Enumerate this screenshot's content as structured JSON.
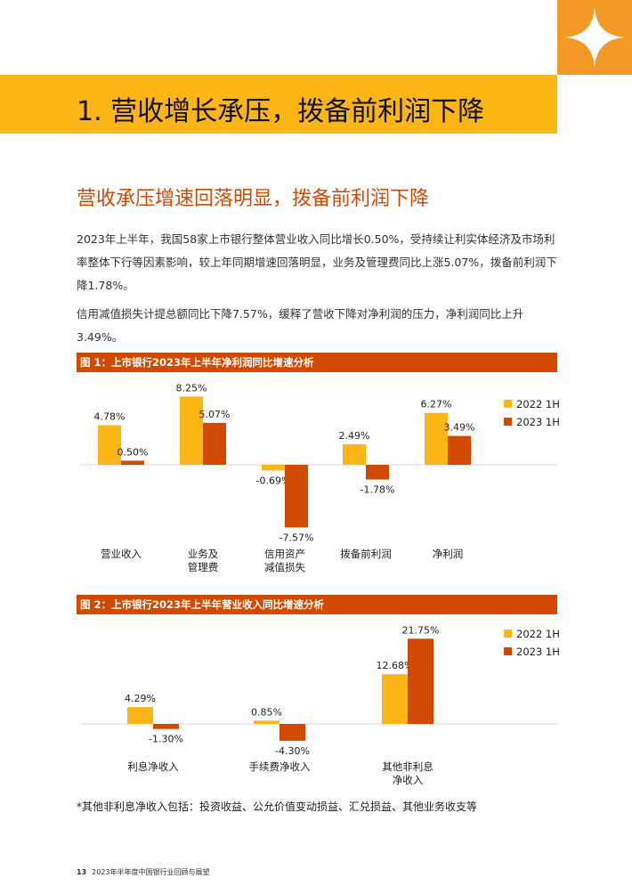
{
  "section_title": "1. 营收增长承压，拨备前利润下降",
  "subtitle": "营收承压增速回落明显，拨备前利润下降",
  "paragraphs": [
    "2023年上半年，我国58家上市银行整体营业收入同比增长0.50%，受持续让利实体经济及市场利率整体下行等因素影响，较上年同期增速回落明显，业务及管理费同比上涨5.07%，拨备前利润下降1.78%。",
    "信用减值损失计提总额同比下降7.57%，缓释了营收下降对净利润的压力，净利润同比上升3.49%。"
  ],
  "colors": {
    "accent_orange": "#d04a02",
    "accent_yellow": "#fbb515",
    "corner_orange": "#f29a25"
  },
  "icons": {
    "corner": "sparkle-star-icon"
  },
  "chart_data": [
    {
      "type": "bar",
      "title": "图 1：上市银行2023年上半年净利润同比增速分析",
      "categories": [
        "营业收入",
        "业务及\n管理费",
        "信用资产\n减值损失",
        "拨备前利润",
        "净利润"
      ],
      "series": [
        {
          "name": "2022 1H",
          "color": "#fbb515",
          "values": [
            4.78,
            8.25,
            -0.69,
            2.49,
            6.27
          ]
        },
        {
          "name": "2023 1H",
          "color": "#d04a02",
          "values": [
            0.5,
            5.07,
            -7.57,
            -1.78,
            3.49
          ]
        }
      ],
      "labels": [
        [
          "4.78%",
          "8.25%",
          "-0.69%",
          "2.49%",
          "6.27%"
        ],
        [
          "0.50%",
          "5.07%",
          "-7.57%",
          "-1.78%",
          "3.49%"
        ]
      ],
      "legend": "top-right",
      "grid": false
    },
    {
      "type": "bar",
      "title": "图 2：上市银行2023年上半年营业收入同比增速分析",
      "categories": [
        "利息净收入",
        "手续费净收入",
        "其他非利息\n净收入"
      ],
      "series": [
        {
          "name": "2022 1H",
          "color": "#fbb515",
          "values": [
            4.29,
            0.85,
            12.68
          ]
        },
        {
          "name": "2023 1H",
          "color": "#d04a02",
          "values": [
            -1.3,
            -4.3,
            21.75
          ]
        }
      ],
      "labels": [
        [
          "4.29%",
          "0.85%",
          "12.68%"
        ],
        [
          "-1.30%",
          "-4.30%",
          "21.75%"
        ]
      ],
      "legend": "top-right",
      "grid": false
    }
  ],
  "footnote": "*其他非利息净收入包括：投资收益、公允价值变动损益、汇兑损益、其他业务收支等",
  "footer": {
    "page_number": "13",
    "text": "2023年半年度中国银行业回顾与展望"
  }
}
